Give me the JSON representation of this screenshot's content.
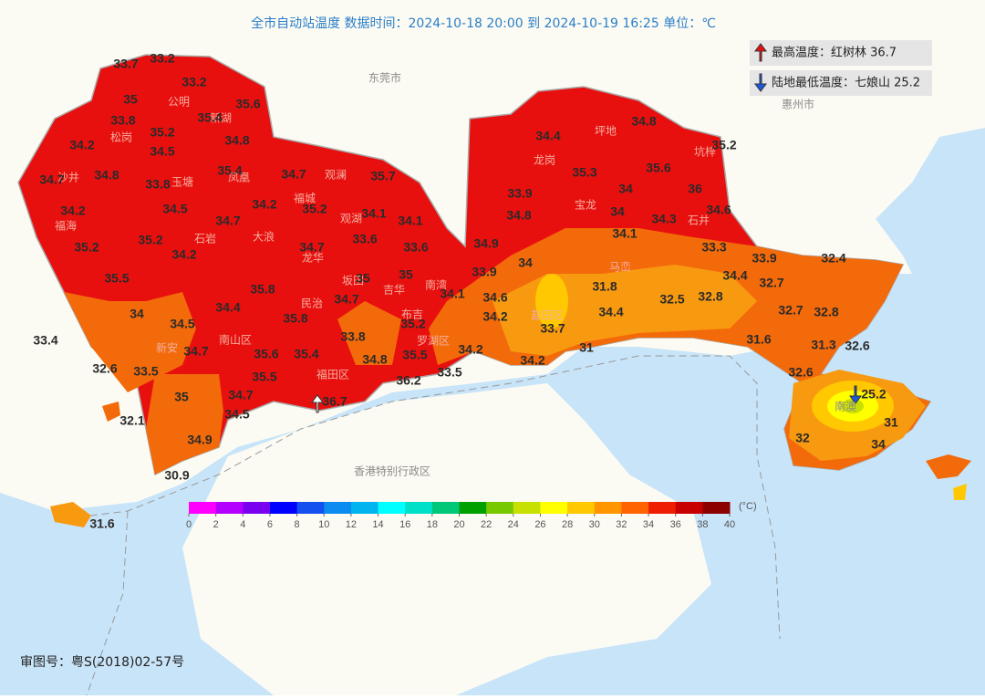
{
  "title": "全市自动站温度  数据时间：2024-10-18 20:00 到 2024-10-19 16:25  单位：℃",
  "legend": {
    "max": "最高温度：红树林 36.7",
    "min": "陆地最低温度：七娘山 25.2"
  },
  "places": [
    "东莞市",
    "惠州市",
    "香港特别行政区",
    "公明",
    "松岗",
    "沙井",
    "福海",
    "石岩",
    "大浪",
    "龙华",
    "观澜",
    "福城",
    "观湖",
    "坂田",
    "吉华",
    "南湾",
    "布吉",
    "民治",
    "南山区",
    "新安",
    "福田区",
    "罗湖区",
    "盐田区",
    "坪地",
    "龙岗",
    "坑梓",
    "宝龙",
    "石井",
    "马峦",
    "南澳",
    "凤凰",
    "玉塘",
    "新湖"
  ],
  "stations": [
    33.7,
    33.2,
    33.2,
    35,
    35.6,
    33.8,
    35.4,
    35.2,
    34.2,
    34.8,
    34.5,
    34.7,
    34.8,
    35.4,
    34.7,
    35.7,
    33.8,
    34.2,
    34.5,
    34.7,
    34.2,
    35.2,
    34.1,
    34.1,
    35.2,
    35.2,
    33.6,
    33.6,
    34.2,
    34.7,
    35.5,
    35,
    35,
    35.8,
    34.4,
    34,
    34.7,
    35.8,
    34.5,
    33.4,
    34.7,
    33.8,
    35.2,
    35.6,
    35.4,
    34.8,
    35.5,
    32.6,
    33.5,
    35.5,
    33.5,
    36.2,
    35,
    34.7,
    36.7,
    32.1,
    34.5,
    34.9,
    30.9,
    31.6,
    34.8,
    34.4,
    35.2,
    35.3,
    35.6,
    33.9,
    34,
    36,
    34.8,
    34,
    34.3,
    34.6,
    34.1,
    34.9,
    33.3,
    33.9,
    32.4,
    34,
    33.9,
    34.4,
    32.7,
    34.1,
    34.6,
    31.8,
    32.5,
    32.8,
    34.2,
    34.4,
    32.7,
    32.8,
    33.7,
    31.6,
    31.3,
    32.6,
    34.2,
    31,
    34.2,
    32.6,
    25.2,
    31,
    32,
    34
  ],
  "colorbar": {
    "ticks": [
      0,
      2,
      4,
      6,
      8,
      10,
      12,
      14,
      16,
      18,
      20,
      22,
      24,
      26,
      28,
      30,
      32,
      34,
      36,
      38,
      40
    ],
    "colors": [
      "#ff00ff",
      "#b400ff",
      "#7a00f0",
      "#0000ff",
      "#1450f0",
      "#0a8cf0",
      "#00b4f0",
      "#00ffff",
      "#00e0c8",
      "#00c878",
      "#00a000",
      "#78c800",
      "#c8e000",
      "#ffff00",
      "#ffc800",
      "#ff9600",
      "#ff6400",
      "#f01e00",
      "#c80000",
      "#8c0000"
    ],
    "unit": "(°C)"
  },
  "approval": "审图号：粤S(2018)02-57号"
}
